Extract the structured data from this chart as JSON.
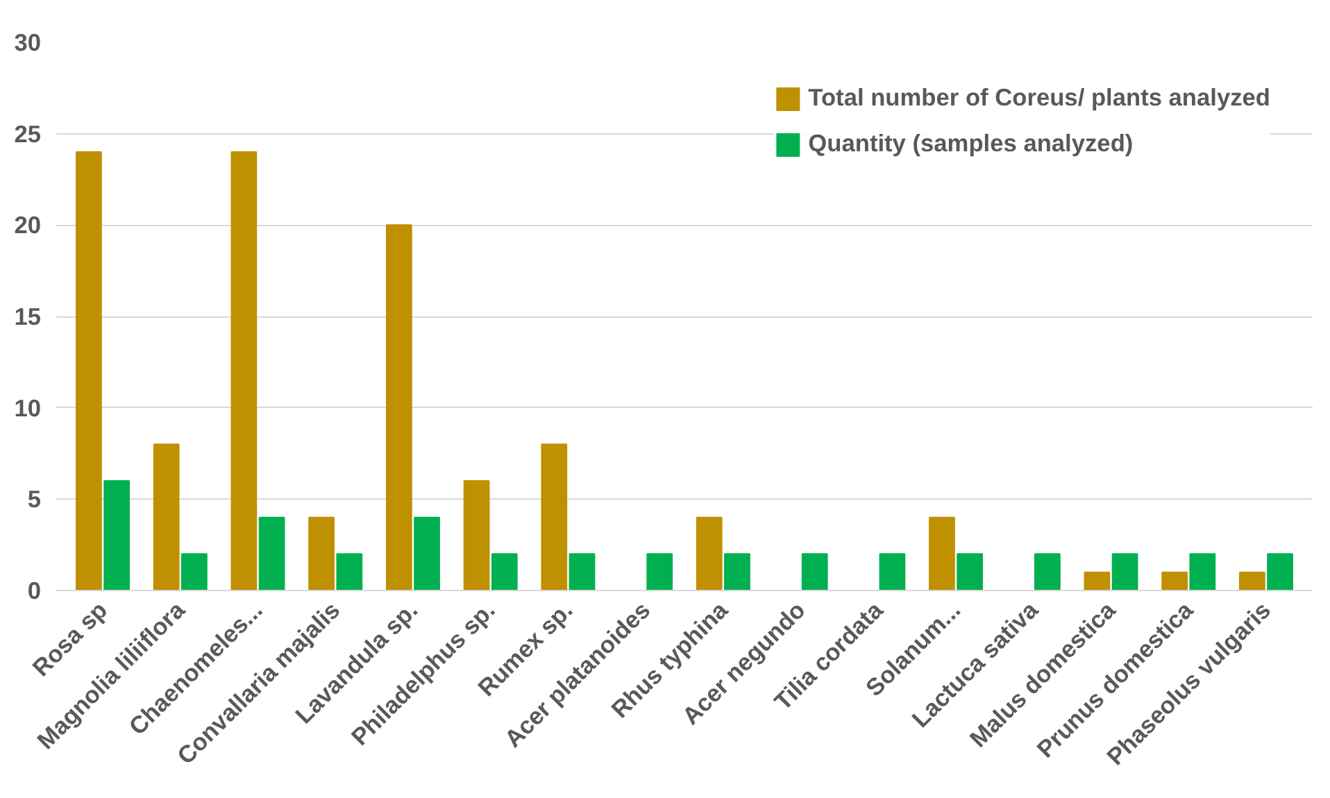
{
  "chart_data": {
    "type": "bar",
    "categories": [
      "Rosa sp",
      "Magnolia liliiflora",
      "Chaenomeles...",
      "Convallaria majalis",
      "Lavandula sp.",
      "Philadelphus sp.",
      "Rumex sp.",
      "Acer platanoides",
      "Rhus typhina",
      "Acer negundo",
      "Tilia cordata",
      "Solanum...",
      "Lactuca sativa",
      "Malus domestica",
      "Prunus domestica",
      "Phaseolus vulgaris"
    ],
    "series": [
      {
        "name": "Total number of Coreus/ plants analyzed",
        "color": "#bf9000",
        "values": [
          24,
          8,
          24,
          4,
          20,
          6,
          8,
          null,
          4,
          null,
          null,
          4,
          null,
          1,
          1,
          1
        ]
      },
      {
        "name": "Quantity (samples analyzed)",
        "color": "#00b050",
        "values": [
          6,
          2,
          4,
          2,
          4,
          2,
          2,
          2,
          2,
          2,
          2,
          2,
          2,
          2,
          2,
          2
        ]
      }
    ],
    "ylim": [
      0,
      30
    ],
    "yticks": [
      0,
      5,
      10,
      15,
      20,
      25,
      30
    ],
    "grid": "y",
    "legend": "top right"
  }
}
